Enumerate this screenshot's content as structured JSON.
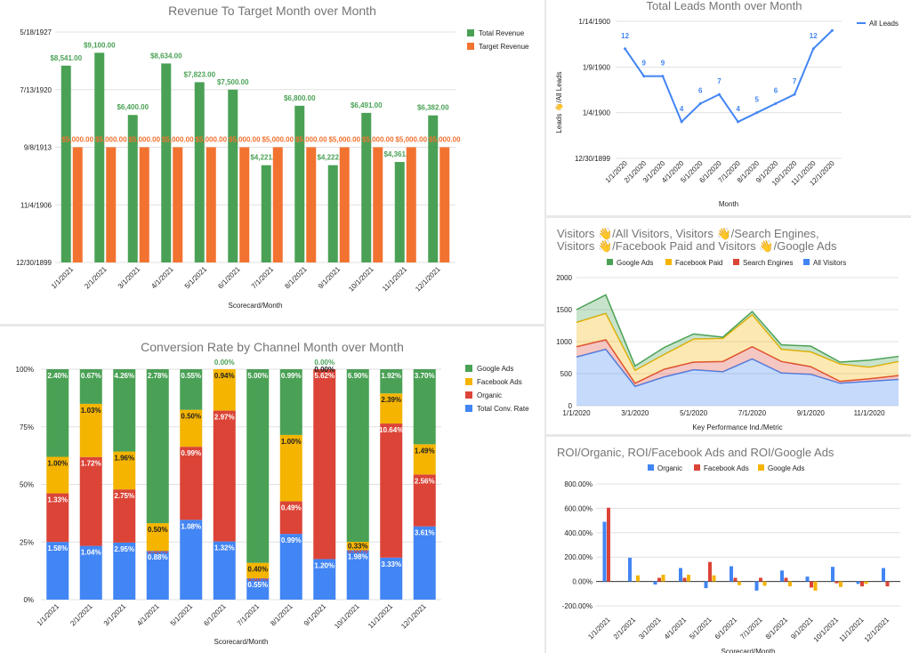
{
  "colors": {
    "green": "#4aa155",
    "orange": "#f27230",
    "red": "#db4437",
    "yellow": "#f4b400",
    "blue": "#4285f4",
    "grid": "#e0e0e0"
  },
  "chart_data": [
    {
      "id": "revenue",
      "type": "bar",
      "title": "Revenue To Target Month over Month",
      "xlabel": "Scorecard/Month",
      "ylabel": "",
      "categories": [
        "1/1/2021",
        "2/1/2021",
        "3/1/2021",
        "4/1/2021",
        "5/1/2021",
        "6/1/2021",
        "7/1/2021",
        "8/1/2021",
        "9/1/2021",
        "10/1/2021",
        "11/1/2021",
        "12/1/2021"
      ],
      "y_ticks": [
        "5/18/1927",
        "7/13/1920",
        "9/8/1913",
        "11/4/1906",
        "12/30/1899"
      ],
      "ylim": [
        0,
        10000
      ],
      "series": [
        {
          "name": "Total Revenue",
          "color": "#4aa155",
          "values": [
            8541,
            9100,
            6400,
            8634,
            7823,
            7500,
            4221,
            6800,
            4222,
            6491,
            4361,
            6382
          ],
          "labels": [
            "$8,541.00",
            "$9,100.00",
            "$6,400.00",
            "$8,634.00",
            "$7,823.00",
            "$7,500.00",
            "$4,221.00",
            "$6,800.00",
            "$4,222.00",
            "$6,491.00",
            "$4,361.00",
            "$6,382.00"
          ]
        },
        {
          "name": "Target Revenue",
          "color": "#f27230",
          "values": [
            5000,
            5000,
            5000,
            5000,
            5000,
            5000,
            5000,
            5000,
            5000,
            5000,
            5000,
            5000
          ],
          "labels": [
            "$5,000.00",
            "$5,000.00",
            "$5,000.00",
            "$5,000.00",
            "$5,000.00",
            "$5,000.00",
            "$5,000.00",
            "$5,000.00",
            "$5,000.00",
            "$5,000.00",
            "$5,000.00",
            "$5,000.00"
          ]
        }
      ],
      "legend": "right"
    },
    {
      "id": "leads",
      "type": "line",
      "title": "Total Leads Month over Month",
      "xlabel": "Month",
      "ylabel": "Leads 👋/All Leads",
      "categories": [
        "1/1/2020",
        "2/1/2020",
        "3/1/2020",
        "4/1/2020",
        "5/1/2020",
        "6/1/2020",
        "7/1/2020",
        "8/1/2020",
        "9/1/2020",
        "10/1/2020",
        "11/1/2020",
        "12/1/2020"
      ],
      "y_ticks": [
        "1/14/1900",
        "1/9/1900",
        "1/4/1900",
        "12/30/1899"
      ],
      "ylim": [
        0,
        15
      ],
      "series": [
        {
          "name": "All Leads",
          "color": "#4285f4",
          "values": [
            12,
            9,
            9,
            4,
            6,
            7,
            4,
            5,
            6,
            7,
            12,
            14
          ],
          "labels": [
            "12",
            "9",
            "9",
            "4",
            "6",
            "7",
            "4",
            "5",
            "6",
            "7",
            "12",
            ""
          ]
        }
      ],
      "legend": "right"
    },
    {
      "id": "conversion",
      "type": "bar",
      "stacked": "percent",
      "title": "Conversion Rate by Channel Month over Month",
      "xlabel": "Scorecard/Month",
      "ylabel": "",
      "categories": [
        "1/1/2021",
        "2/1/2021",
        "3/1/2021",
        "4/1/2021",
        "5/1/2021",
        "6/1/2021",
        "7/1/2021",
        "8/1/2021",
        "9/1/2021",
        "10/1/2021",
        "11/1/2021",
        "12/1/2021"
      ],
      "y_ticks": [
        "100%",
        "75%",
        "50%",
        "25%",
        "0%"
      ],
      "series": [
        {
          "name": "Total Conv. Rate",
          "color": "#4285f4",
          "values": [
            1.58,
            1.04,
            2.95,
            0.88,
            1.08,
            1.32,
            0.55,
            0.99,
            1.2,
            1.98,
            3.33,
            3.61
          ],
          "labels": [
            "1.58%",
            "1.04%",
            "2.95%",
            "0.88%",
            "1.08%",
            "1.32%",
            "0.55%",
            "0.99%",
            "1.20%",
            "1.98%",
            "3.33%",
            "3.61%"
          ]
        },
        {
          "name": "Organic",
          "color": "#db4437",
          "values": [
            1.33,
            1.72,
            2.75,
            0,
            0.99,
            2.97,
            0,
            0.49,
            5.62,
            0,
            10.64,
            2.56
          ],
          "labels": [
            "1.33%",
            "1.72%",
            "2.75%",
            "0.00%",
            "0.99%",
            "2.97%",
            "0.00%",
            "0.49%",
            "5.62%",
            "0.00%",
            "10.64%",
            "2.56%"
          ]
        },
        {
          "name": "Facebook Ads",
          "color": "#f4b400",
          "values": [
            1.0,
            1.03,
            1.96,
            0.5,
            0.5,
            0.94,
            0.4,
            1.0,
            0,
            0.33,
            2.39,
            1.49
          ],
          "labels": [
            "1.00%",
            "1.03%",
            "1.96%",
            "0.50%",
            "0.50%",
            "0.94%",
            "0.40%",
            "1.00%",
            "0.00%",
            "0.33%",
            "2.39%",
            "1.49%"
          ]
        },
        {
          "name": "Google Ads",
          "color": "#4aa155",
          "values": [
            2.4,
            0.67,
            4.26,
            2.78,
            0.55,
            0,
            5.0,
            0.99,
            0,
            6.9,
            1.92,
            3.7
          ],
          "labels": [
            "2.40%",
            "0.67%",
            "4.26%",
            "2.78%",
            "0.55%",
            "0.00%",
            "5.00%",
            "0.99%",
            "0.00%",
            "6.90%",
            "1.92%",
            "3.70%"
          ]
        }
      ],
      "legend": "right"
    },
    {
      "id": "visitors",
      "type": "area",
      "stacked": true,
      "title": "Visitors 👋/All Visitors, Visitors 👋/Search Engines, Visitors 👋/Facebook Paid and Visitors 👋/Google Ads",
      "xlabel": "Key Performance Ind./Metric",
      "ylabel": "",
      "x": [
        "1/1/2020",
        "2/1/2020",
        "3/1/2020",
        "4/1/2020",
        "5/1/2020",
        "6/1/2020",
        "7/1/2020",
        "8/1/2020",
        "9/1/2020",
        "10/1/2020",
        "11/1/2020",
        "12/1/2020"
      ],
      "x_tick_labels": [
        "1/1/2020",
        "3/1/2020",
        "5/1/2020",
        "7/1/2020",
        "9/1/2020",
        "11/1/2020"
      ],
      "y_ticks": [
        "2000",
        "1500",
        "1000",
        "500",
        "0"
      ],
      "ylim": [
        0,
        2000
      ],
      "series": [
        {
          "name": "All Visitors",
          "color": "#4285f4",
          "values": [
            760,
            880,
            300,
            450,
            560,
            530,
            730,
            510,
            490,
            350,
            380,
            410
          ]
        },
        {
          "name": "Search Engines",
          "color": "#db4437",
          "values": [
            160,
            150,
            50,
            120,
            120,
            160,
            190,
            180,
            120,
            30,
            40,
            60
          ]
        },
        {
          "name": "Facebook Paid",
          "color": "#f4b400",
          "values": [
            380,
            410,
            200,
            230,
            360,
            360,
            500,
            190,
            230,
            270,
            180,
            220
          ]
        },
        {
          "name": "Google Ads",
          "color": "#4aa155",
          "values": [
            200,
            290,
            70,
            110,
            80,
            20,
            50,
            70,
            90,
            30,
            110,
            80
          ]
        }
      ],
      "legend": "top"
    },
    {
      "id": "roi",
      "type": "bar",
      "title": "ROI/Organic, ROI/Facebook Ads and ROI/Google Ads",
      "xlabel": "Scorecard/Month",
      "ylabel": "",
      "categories": [
        "1/1/2021",
        "2/1/2021",
        "3/1/2021",
        "4/1/2021",
        "5/1/2021",
        "6/1/2021",
        "7/1/2021",
        "8/1/2021",
        "9/1/2021",
        "10/1/2021",
        "11/1/2021",
        "12/1/2021"
      ],
      "y_ticks": [
        "800.00%",
        "600.00%",
        "400.00%",
        "200.00%",
        "0.00%",
        "-200.00%"
      ],
      "ylim": [
        -200,
        800
      ],
      "series": [
        {
          "name": "Organic",
          "color": "#4285f4",
          "values": [
            490,
            195,
            -25,
            110,
            -55,
            125,
            -75,
            90,
            40,
            120,
            -20,
            110
          ]
        },
        {
          "name": "Facebook Ads",
          "color": "#db4437",
          "values": [
            605,
            0,
            30,
            30,
            160,
            30,
            30,
            30,
            -50,
            -15,
            -40,
            -40
          ]
        },
        {
          "name": "Google Ads",
          "color": "#f4b400",
          "values": [
            0,
            50,
            55,
            55,
            50,
            -30,
            -35,
            -40,
            -75,
            -45,
            -20,
            0
          ]
        }
      ],
      "legend": "top"
    }
  ]
}
